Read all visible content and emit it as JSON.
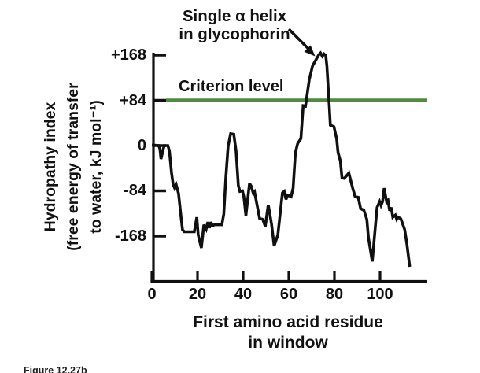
{
  "annotation": {
    "line1": "Single α helix",
    "line2": "in glycophorin"
  },
  "criterion": {
    "label": "Criterion level",
    "value": 84,
    "color": "#4e8c3b"
  },
  "y_axis": {
    "title_lines": [
      "Hydropathy index",
      "(free energy of transfer",
      "to water, kJ mol⁻¹)"
    ],
    "ticks": [
      {
        "label": "+168",
        "value": 168
      },
      {
        "label": "+84",
        "value": 84
      },
      {
        "label": "0",
        "value": 0
      },
      {
        "label": "-84",
        "value": -84
      },
      {
        "label": "-168",
        "value": -168
      }
    ]
  },
  "x_axis": {
    "title_lines": [
      "First amino acid residue",
      "in window"
    ],
    "ticks": [
      {
        "label": "0",
        "value": 0
      },
      {
        "label": "20",
        "value": 20
      },
      {
        "label": "40",
        "value": 40
      },
      {
        "label": "60",
        "value": 60
      },
      {
        "label": "80",
        "value": 80
      },
      {
        "label": "100",
        "value": 100
      }
    ]
  },
  "caption": "Figure 12.27b",
  "chart_data": {
    "type": "line",
    "xlabel": "First amino acid residue in window",
    "ylabel": "Hydropathy index (free energy of transfer to water, kJ mol⁻¹)",
    "xlim": [
      0,
      120
    ],
    "ylim": [
      -230,
      185
    ],
    "x_ticks": [
      0,
      20,
      40,
      60,
      80,
      100
    ],
    "y_ticks": [
      168,
      84,
      0,
      -84,
      -168
    ],
    "grid": false,
    "legend": false,
    "criterion_level": 84,
    "annotation_text": "Single α helix in glycophorin (arrow points to peak near residue 74)",
    "series": [
      {
        "name": "hydropathy",
        "color": "#101010",
        "points": [
          [
            0,
            1
          ],
          [
            3,
            0
          ],
          [
            3.5,
            -6
          ],
          [
            4,
            -25
          ],
          [
            5,
            -6
          ],
          [
            5.5,
            0
          ],
          [
            7,
            0
          ],
          [
            7.7,
            -10
          ],
          [
            8.6,
            -50
          ],
          [
            9.3,
            -72
          ],
          [
            10,
            -79
          ],
          [
            10.7,
            -73
          ],
          [
            11.7,
            -89
          ],
          [
            12.8,
            -133
          ],
          [
            13.4,
            -156
          ],
          [
            14.2,
            -160
          ],
          [
            18.6,
            -160
          ],
          [
            19.7,
            -133
          ],
          [
            20.3,
            -166
          ],
          [
            21.7,
            -190
          ],
          [
            22.8,
            -147
          ],
          [
            23.8,
            -155
          ],
          [
            24.5,
            -142
          ],
          [
            25.2,
            -153
          ],
          [
            25.9,
            -142
          ],
          [
            26.6,
            -149
          ],
          [
            27.4,
            -147
          ],
          [
            30.7,
            -147
          ],
          [
            31.5,
            -127
          ],
          [
            32.4,
            -60
          ],
          [
            33.4,
            -1
          ],
          [
            34.5,
            22
          ],
          [
            35.9,
            21
          ],
          [
            36.9,
            -10
          ],
          [
            37.9,
            -74
          ],
          [
            38.6,
            -85
          ],
          [
            39.7,
            -84
          ],
          [
            40.3,
            -95
          ],
          [
            41.2,
            -130
          ],
          [
            42.8,
            -70
          ],
          [
            43.5,
            -75
          ],
          [
            44.5,
            -89
          ],
          [
            45,
            -86
          ],
          [
            46.2,
            -113
          ],
          [
            47.2,
            -135
          ],
          [
            48.6,
            -137
          ],
          [
            49.7,
            -150
          ],
          [
            51,
            -110
          ],
          [
            52.4,
            -145
          ],
          [
            53.6,
            -186
          ],
          [
            55.2,
            -166
          ],
          [
            57.2,
            -88
          ],
          [
            58,
            -85
          ],
          [
            58.8,
            -100
          ],
          [
            59.5,
            -92
          ],
          [
            61,
            -95
          ],
          [
            61.9,
            -79
          ],
          [
            62.9,
            -13
          ],
          [
            63.9,
            4
          ],
          [
            65.3,
            13
          ],
          [
            66.3,
            74
          ],
          [
            67.3,
            73
          ],
          [
            69,
            123
          ],
          [
            70.4,
            148
          ],
          [
            72,
            160
          ],
          [
            73.2,
            169
          ],
          [
            73.9,
            172
          ],
          [
            74.7,
            166
          ],
          [
            75.4,
            170
          ],
          [
            76.2,
            167
          ],
          [
            76.7,
            148
          ],
          [
            77.8,
            70
          ],
          [
            78.2,
            38
          ],
          [
            79.8,
            35
          ],
          [
            81,
            12
          ],
          [
            81.6,
            -13
          ],
          [
            82.6,
            -28
          ],
          [
            83.3,
            -60
          ],
          [
            84.3,
            -61
          ],
          [
            86.3,
            -51
          ],
          [
            88,
            -79
          ],
          [
            89.1,
            -95
          ],
          [
            90.4,
            -96
          ],
          [
            91.5,
            -117
          ],
          [
            92.9,
            -120
          ],
          [
            94.2,
            -137
          ],
          [
            94.9,
            -171
          ],
          [
            96.6,
            -215
          ],
          [
            97.9,
            -152
          ],
          [
            98.7,
            -115
          ],
          [
            99.8,
            -104
          ],
          [
            100.4,
            -111
          ],
          [
            101.1,
            -104
          ],
          [
            101.8,
            -79
          ],
          [
            102.9,
            -105
          ],
          [
            103.5,
            -102
          ],
          [
            104.2,
            -121
          ],
          [
            104.9,
            -115
          ],
          [
            105.6,
            -133
          ],
          [
            106.7,
            -129
          ],
          [
            107.3,
            -137
          ],
          [
            108,
            -133
          ],
          [
            109.1,
            -136
          ],
          [
            110.8,
            -156
          ],
          [
            111.8,
            -184
          ],
          [
            113,
            -225
          ]
        ]
      }
    ]
  }
}
